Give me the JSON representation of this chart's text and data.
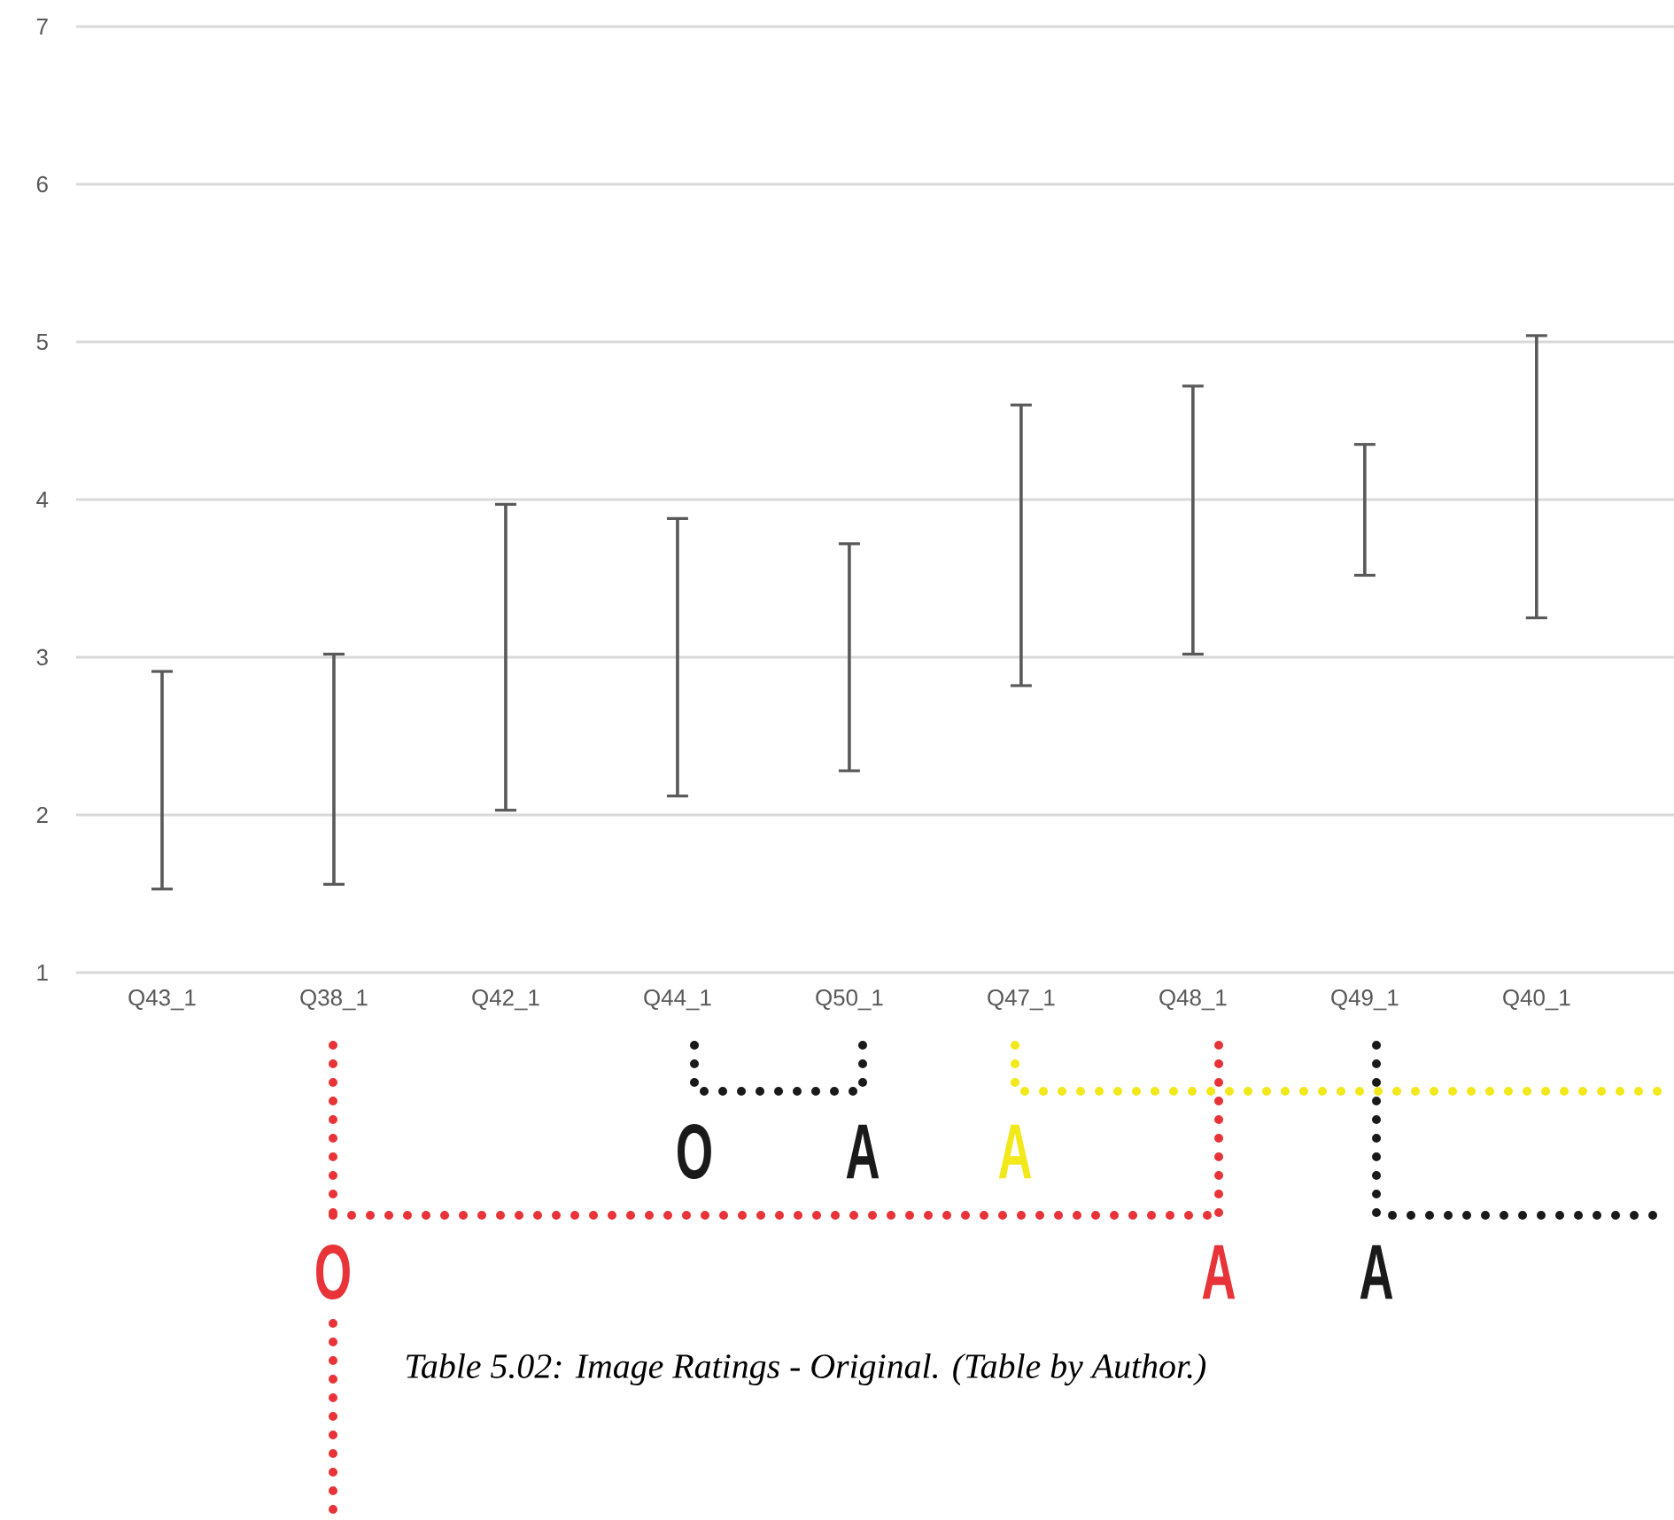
{
  "chart_data": {
    "type": "bar",
    "categories": [
      "Q43_1",
      "Q38_1",
      "Q42_1",
      "Q44_1",
      "Q50_1",
      "Q47_1",
      "Q48_1",
      "Q49_1",
      "Q40_1"
    ],
    "base": [
      1.53,
      1.56,
      2.03,
      2.12,
      2.28,
      2.82,
      3.02,
      3.52,
      3.25
    ],
    "values": [
      1.38,
      1.46,
      1.94,
      1.76,
      1.44,
      1.78,
      1.7,
      0.83,
      1.79
    ],
    "color": "#595959",
    "ylim": [
      1,
      7
    ],
    "yticks": [
      1,
      2,
      3,
      4,
      5,
      6,
      7
    ],
    "grid": "y",
    "annotations": [
      "O",
      "A",
      "A",
      "O",
      "A",
      "A",
      "Table 5.02: Image Ratings - Original. (Table by Author.)"
    ]
  }
}
